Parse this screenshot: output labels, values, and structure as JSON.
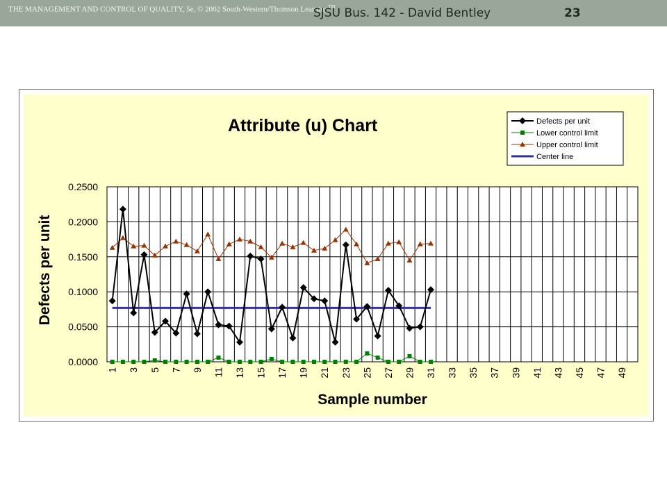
{
  "header": {
    "copyright_line": "THE MANAGEMENT AND CONTROL OF QUALITY, 5e, © 2002 South-Western/Thomson Learning",
    "copyright_tm": "TM",
    "course_line": "SJSU Bus. 142 - David Bentley",
    "page_number": "23"
  },
  "colors": {
    "header_bar": "#9aa69a",
    "chart_background": "#ffffcc",
    "plot_background": "#ffffff",
    "defects": "#000000",
    "lcl": "#008000",
    "ucl": "#993300",
    "center": "#333399"
  },
  "chart_data": {
    "type": "line",
    "title": "Attribute (u) Chart",
    "xlabel": "Sample number",
    "ylabel": "Defects per unit",
    "xlim": [
      1,
      50
    ],
    "ylim": [
      0,
      0.25
    ],
    "y_ticks": [
      "0.0000",
      "0.0500",
      "0.1000",
      "0.1500",
      "0.2000",
      "0.2500"
    ],
    "x_ticks": [
      "1",
      "3",
      "5",
      "7",
      "9",
      "11",
      "13",
      "15",
      "17",
      "19",
      "21",
      "23",
      "25",
      "27",
      "29",
      "31",
      "33",
      "35",
      "37",
      "39",
      "41",
      "43",
      "45",
      "47",
      "49"
    ],
    "grid": true,
    "legend_position": "top-right",
    "x": [
      1,
      2,
      3,
      4,
      5,
      6,
      7,
      8,
      9,
      10,
      11,
      12,
      13,
      14,
      15,
      16,
      17,
      18,
      19,
      20,
      21,
      22,
      23,
      24,
      25,
      26,
      27,
      28,
      29,
      30,
      31
    ],
    "series": [
      {
        "name": "Defects per unit",
        "marker": "diamond",
        "values": [
          0.087,
          0.218,
          0.07,
          0.153,
          0.042,
          0.058,
          0.041,
          0.097,
          0.04,
          0.1,
          0.053,
          0.051,
          0.028,
          0.151,
          0.147,
          0.047,
          0.078,
          0.034,
          0.106,
          0.09,
          0.087,
          0.028,
          0.167,
          0.061,
          0.079,
          0.037,
          0.102,
          0.08,
          0.048,
          0.05,
          0.103
        ]
      },
      {
        "name": "Lower control limit",
        "marker": "square",
        "values": [
          0.0,
          0.0,
          0.0,
          0.0,
          0.002,
          0.0,
          0.0,
          0.0,
          0.0,
          0.0,
          0.006,
          0.0,
          0.0,
          0.0,
          0.0,
          0.004,
          0.0,
          0.0,
          0.0,
          0.0,
          0.0,
          0.0,
          0.0,
          0.0,
          0.012,
          0.006,
          0.0,
          0.0,
          0.008,
          0.0,
          0.0
        ]
      },
      {
        "name": "Upper control limit",
        "marker": "triangle",
        "values": [
          0.163,
          0.177,
          0.165,
          0.166,
          0.152,
          0.165,
          0.172,
          0.167,
          0.158,
          0.182,
          0.147,
          0.168,
          0.175,
          0.172,
          0.164,
          0.149,
          0.169,
          0.164,
          0.17,
          0.159,
          0.162,
          0.174,
          0.189,
          0.168,
          0.141,
          0.147,
          0.169,
          0.171,
          0.145,
          0.168,
          0.169
        ]
      },
      {
        "name": "Center line",
        "marker": "none",
        "values": [
          0.077,
          0.077,
          0.077,
          0.077,
          0.077,
          0.077,
          0.077,
          0.077,
          0.077,
          0.077,
          0.077,
          0.077,
          0.077,
          0.077,
          0.077,
          0.077,
          0.077,
          0.077,
          0.077,
          0.077,
          0.077,
          0.077,
          0.077,
          0.077,
          0.077,
          0.077,
          0.077,
          0.077,
          0.077,
          0.077,
          0.077
        ]
      }
    ]
  }
}
